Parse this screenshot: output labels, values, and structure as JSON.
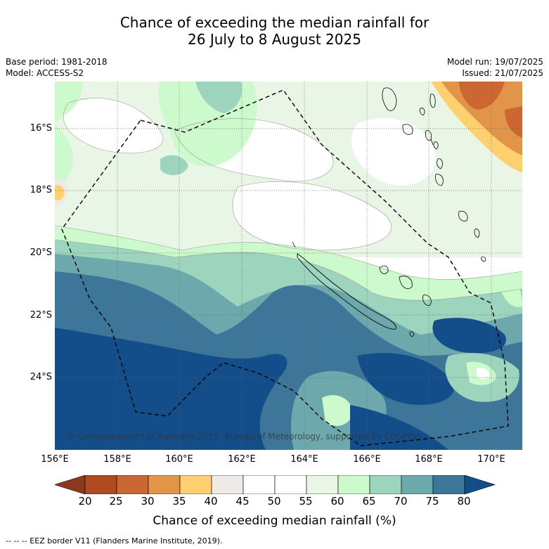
{
  "title": {
    "line1": "Chance of exceeding the median rainfall for",
    "line2": "26 July to 8 August 2025"
  },
  "meta_left": {
    "base_period": "Base period: 1981-2018",
    "model": "Model: ACCESS-S2"
  },
  "meta_right": {
    "model_run": "Model run: 19/07/2025",
    "issued": "Issued: 21/07/2025"
  },
  "lat_labels": [
    "16°S",
    "18°S",
    "20°S",
    "22°S",
    "24°S"
  ],
  "lon_labels": [
    "156°E",
    "158°E",
    "160°E",
    "162°E",
    "164°E",
    "166°E",
    "168°E",
    "170°E"
  ],
  "copyright": "© Commonwealth of Australia 2025, Bureau of Meteorology, supported by COSPPac",
  "colorbar": {
    "ticks": [
      "20",
      "25",
      "30",
      "35",
      "40",
      "45",
      "50",
      "55",
      "60",
      "65",
      "70",
      "75",
      "80"
    ],
    "colors": [
      "#8b3a1e",
      "#b04a22",
      "#cc6633",
      "#e09548",
      "#ffd070",
      "#efeae6",
      "#ffffff",
      "#ffffff",
      "#e9f6e6",
      "#ccfacc",
      "#9cd4bd",
      "#6da8ad",
      "#3e7699",
      "#134e8a"
    ],
    "label": "Chance of exceeding median rainfall (%)"
  },
  "footer": "--  --  -- EEZ border V11 (Flanders Marine Institute, 2019)."
}
